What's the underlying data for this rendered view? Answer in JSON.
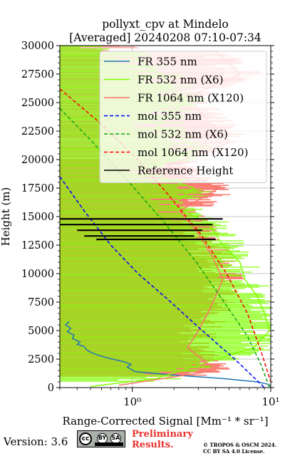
{
  "chart_data": {
    "type": "line",
    "title": "pollyxt_cpv at Mindelo",
    "subtitle": "[Averaged] 20240208 07:10-07:34",
    "xlabel": "Range-Corrected Signal [Mm⁻¹ * sr⁻¹]",
    "ylabel": "Height (m)",
    "xscale": "log",
    "xlim": [
      0.3,
      10
    ],
    "ylim": [
      0,
      30000
    ],
    "grid": true,
    "x_ticks": [
      1,
      10
    ],
    "x_tick_labels": [
      "10⁰",
      "10¹"
    ],
    "y_ticks": [
      0,
      2500,
      5000,
      7500,
      10000,
      12500,
      15000,
      17500,
      20000,
      22500,
      25000,
      27500,
      30000
    ],
    "legend_position": "top-right",
    "series": [
      {
        "name": "FR 355 nm",
        "color": "#1f77b4",
        "style": "solid",
        "points": [
          [
            0.35,
            5800
          ],
          [
            0.33,
            5500
          ],
          [
            0.36,
            5200
          ],
          [
            0.34,
            4900
          ],
          [
            0.38,
            4600
          ],
          [
            0.37,
            4300
          ],
          [
            0.42,
            4000
          ],
          [
            0.4,
            3800
          ],
          [
            0.45,
            3600
          ],
          [
            0.47,
            3300
          ],
          [
            0.5,
            3100
          ],
          [
            0.55,
            2900
          ],
          [
            0.62,
            2700
          ],
          [
            0.72,
            2500
          ],
          [
            0.85,
            2300
          ],
          [
            0.98,
            2050
          ],
          [
            0.92,
            1800
          ],
          [
            1.05,
            1400
          ],
          [
            2.0,
            1100
          ],
          [
            4.5,
            800
          ],
          [
            8.0,
            500
          ],
          [
            9.5,
            300
          ],
          [
            10,
            150
          ]
        ]
      },
      {
        "name": "FR 532 nm (X6)",
        "color": "#7fff00",
        "style": "solid",
        "points": [
          [
            0.9,
            29500
          ],
          [
            1.6,
            27500
          ],
          [
            2.4,
            25000
          ],
          [
            1.5,
            23000
          ],
          [
            3.0,
            21000
          ],
          [
            1.2,
            19000
          ],
          [
            2.8,
            17500
          ],
          [
            1.9,
            16000
          ],
          [
            3.5,
            14500
          ],
          [
            4.5,
            12500
          ],
          [
            6.0,
            11000
          ],
          [
            6.5,
            9500
          ],
          [
            8.0,
            8000
          ],
          [
            9.0,
            6500
          ],
          [
            9.8,
            5000
          ],
          [
            7.5,
            3500
          ],
          [
            3.0,
            2000
          ],
          [
            1.5,
            800
          ],
          [
            0.5,
            100
          ]
        ]
      },
      {
        "name": "FR 1064 nm (X120)",
        "color": "#fa7268",
        "style": "solid",
        "points": [
          [
            4.0,
            29500
          ],
          [
            6.0,
            27500
          ],
          [
            2.5,
            25500
          ],
          [
            3.5,
            23500
          ],
          [
            5.0,
            21500
          ],
          [
            1.8,
            19500
          ],
          [
            4.2,
            17500
          ],
          [
            2.2,
            15500
          ],
          [
            3.0,
            13500
          ],
          [
            3.8,
            11500
          ],
          [
            4.5,
            9500
          ],
          [
            4.0,
            8000
          ],
          [
            3.5,
            6500
          ],
          [
            3.0,
            5000
          ],
          [
            2.5,
            3500
          ],
          [
            3.2,
            2500
          ],
          [
            4.0,
            1500
          ],
          [
            0.8,
            200
          ]
        ]
      },
      {
        "name": "mol 355 nm",
        "color": "#0000ff",
        "style": "dashed",
        "points": [
          [
            0.3,
            18500
          ],
          [
            0.45,
            15500
          ],
          [
            0.7,
            12500
          ],
          [
            1.1,
            10000
          ],
          [
            1.9,
            7500
          ],
          [
            3.2,
            5000
          ],
          [
            5.5,
            2500
          ],
          [
            9.0,
            0
          ]
        ]
      },
      {
        "name": "mol 532 nm (X6)",
        "color": "#11a611",
        "style": "dashed",
        "points": [
          [
            0.3,
            24500
          ],
          [
            0.52,
            21500
          ],
          [
            0.95,
            18000
          ],
          [
            1.7,
            14500
          ],
          [
            2.9,
            11000
          ],
          [
            4.6,
            7500
          ],
          [
            6.8,
            4500
          ],
          [
            8.5,
            2000
          ],
          [
            9.8,
            0
          ]
        ]
      },
      {
        "name": "mol 1064 nm (X120)",
        "color": "#ff0000",
        "style": "dashed",
        "points": [
          [
            0.3,
            26200
          ],
          [
            0.55,
            23500
          ],
          [
            1.0,
            20500
          ],
          [
            1.8,
            17000
          ],
          [
            3.1,
            13500
          ],
          [
            4.8,
            10000
          ],
          [
            6.8,
            6500
          ],
          [
            8.6,
            3000
          ],
          [
            10.0,
            500
          ]
        ]
      },
      {
        "name": "Reference Height",
        "color": "#000000",
        "style": "solid",
        "points": [
          [
            0.3,
            14800
          ],
          [
            4.5,
            14800
          ],
          [
            0.3,
            14300
          ],
          [
            3.8,
            14300
          ],
          [
            0.4,
            13800
          ],
          [
            3.2,
            13800
          ],
          [
            0.45,
            13300
          ],
          [
            2.8,
            13300
          ],
          [
            0.55,
            13000
          ],
          [
            4.0,
            13000
          ]
        ]
      }
    ]
  },
  "footer": {
    "version": "Version: 3.6",
    "cc_labels": [
      "cc",
      "BY",
      "SA"
    ],
    "preliminary": [
      "Preliminary",
      "Results."
    ],
    "copyright": [
      "© TROPOS & OSCM 2024.",
      "CC BY SA 4.0 License."
    ]
  }
}
